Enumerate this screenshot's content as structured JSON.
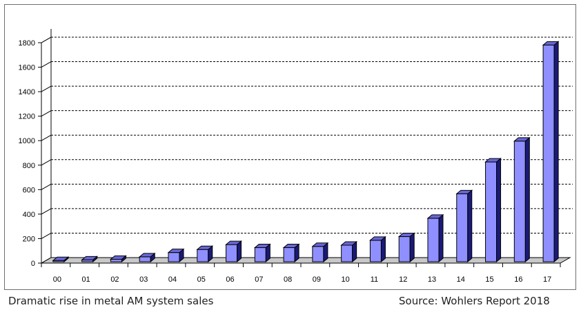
{
  "caption_left": "Dramatic rise in metal AM system sales",
  "caption_right": "Source: Wohlers Report 2018",
  "colors": {
    "bar_front": "#8f8fff",
    "bar_side": "#1a1a78",
    "bar_top": "#6767d6",
    "floor": "#c8c8c8",
    "grid": "#000000"
  },
  "chart_data": {
    "type": "bar",
    "title": "",
    "xlabel": "",
    "ylabel": "",
    "categories": [
      "00",
      "01",
      "02",
      "03",
      "04",
      "05",
      "06",
      "07",
      "08",
      "09",
      "10",
      "11",
      "12",
      "13",
      "14",
      "15",
      "16",
      "17"
    ],
    "values": [
      10,
      15,
      20,
      40,
      75,
      100,
      140,
      115,
      115,
      125,
      135,
      175,
      205,
      355,
      555,
      815,
      985,
      1770
    ],
    "ylim": [
      0,
      1800
    ],
    "yticks": [
      "0",
      "200",
      "400",
      "600",
      "800",
      "1000",
      "1200",
      "1400",
      "1600",
      "1800"
    ],
    "grid": true,
    "legend": "none",
    "style": "3d"
  }
}
